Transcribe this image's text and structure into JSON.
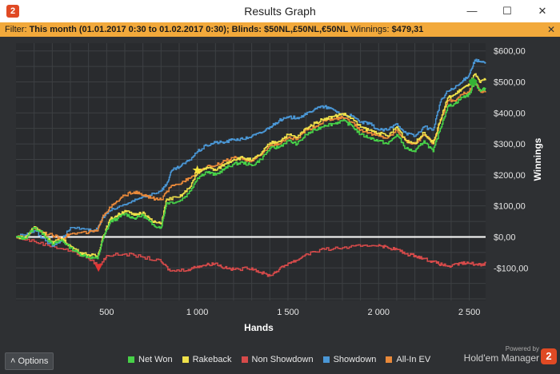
{
  "window": {
    "title": "Results Graph",
    "minimize_glyph": "—",
    "maximize_glyph": "☐",
    "close_glyph": "✕",
    "app_logo_text": "2"
  },
  "filter": {
    "label": "Filter:",
    "text": "This month (01.01.2017 0:30 to 01.02.2017 0:30); Blinds: $50NL,£50NL,€50NL",
    "winnings_label": "Winnings:",
    "winnings_value": "$479,31",
    "close_glyph": "✕"
  },
  "options": {
    "label": "Options",
    "icon": "chevron-up-icon",
    "glyph": "˄"
  },
  "brand": {
    "powered_by": "Powered by",
    "name": "Hold'em Manager",
    "logo_text": "2"
  },
  "colors": {
    "background": "#2e3033",
    "plot_bg": "#292b2e",
    "grid": "#3d4043",
    "zero_line": "#ffffff",
    "net_won": "#47d148",
    "rakeback": "#efe14a",
    "non_showdown": "#d64a4a",
    "showdown": "#4a97d6",
    "allin_ev": "#e9893a",
    "filter_bar": "#f2a93b"
  },
  "chart_data": {
    "type": "line",
    "xlabel": "Hands",
    "ylabel": "Winnings",
    "xlim": [
      0,
      2590
    ],
    "ylim": [
      -205,
      625
    ],
    "x_ticks": [
      {
        "value": 500,
        "label": "500"
      },
      {
        "value": 1000,
        "label": "1 000"
      },
      {
        "value": 1500,
        "label": "1 500"
      },
      {
        "value": 2000,
        "label": "2 000"
      },
      {
        "value": 2500,
        "label": "2 500"
      }
    ],
    "y_ticks": [
      {
        "value": 600,
        "label": "$600,00"
      },
      {
        "value": 500,
        "label": "$500,00"
      },
      {
        "value": 400,
        "label": "$400,00"
      },
      {
        "value": 300,
        "label": "$300,00"
      },
      {
        "value": 200,
        "label": "$200,00"
      },
      {
        "value": 100,
        "label": "$100,00"
      },
      {
        "value": 0,
        "label": "$0,00"
      },
      {
        "value": -100,
        "label": "-$100,00"
      }
    ],
    "grid": true,
    "legend_position": "bottom",
    "series": [
      {
        "name": "Net Won",
        "color": "#47d148",
        "points": [
          [
            0,
            0
          ],
          [
            50,
            -5
          ],
          [
            100,
            30
          ],
          [
            150,
            10
          ],
          [
            200,
            -25
          ],
          [
            250,
            -10
          ],
          [
            300,
            -35
          ],
          [
            350,
            -55
          ],
          [
            400,
            -65
          ],
          [
            450,
            -70
          ],
          [
            480,
            -5
          ],
          [
            520,
            50
          ],
          [
            560,
            60
          ],
          [
            600,
            75
          ],
          [
            650,
            60
          ],
          [
            700,
            70
          ],
          [
            750,
            40
          ],
          [
            800,
            30
          ],
          [
            830,
            110
          ],
          [
            900,
            115
          ],
          [
            950,
            140
          ],
          [
            1000,
            190
          ],
          [
            1050,
            210
          ],
          [
            1100,
            200
          ],
          [
            1150,
            220
          ],
          [
            1200,
            235
          ],
          [
            1250,
            240
          ],
          [
            1300,
            230
          ],
          [
            1350,
            250
          ],
          [
            1400,
            285
          ],
          [
            1450,
            290
          ],
          [
            1500,
            310
          ],
          [
            1550,
            300
          ],
          [
            1600,
            330
          ],
          [
            1650,
            345
          ],
          [
            1700,
            360
          ],
          [
            1750,
            365
          ],
          [
            1800,
            375
          ],
          [
            1850,
            360
          ],
          [
            1900,
            330
          ],
          [
            1950,
            320
          ],
          [
            2000,
            310
          ],
          [
            2050,
            300
          ],
          [
            2100,
            330
          ],
          [
            2150,
            285
          ],
          [
            2200,
            275
          ],
          [
            2250,
            310
          ],
          [
            2300,
            275
          ],
          [
            2340,
            350
          ],
          [
            2380,
            420
          ],
          [
            2420,
            430
          ],
          [
            2460,
            450
          ],
          [
            2500,
            460
          ],
          [
            2530,
            500
          ],
          [
            2560,
            470
          ],
          [
            2590,
            480
          ]
        ]
      },
      {
        "name": "Rakeback",
        "color": "#efe14a",
        "points": [
          [
            0,
            0
          ],
          [
            50,
            -3
          ],
          [
            100,
            33
          ],
          [
            150,
            13
          ],
          [
            200,
            -20
          ],
          [
            250,
            -5
          ],
          [
            300,
            -30
          ],
          [
            350,
            -50
          ],
          [
            400,
            -58
          ],
          [
            450,
            -62
          ],
          [
            480,
            3
          ],
          [
            520,
            58
          ],
          [
            560,
            70
          ],
          [
            600,
            85
          ],
          [
            650,
            70
          ],
          [
            700,
            80
          ],
          [
            750,
            50
          ],
          [
            800,
            42
          ],
          [
            830,
            122
          ],
          [
            900,
            128
          ],
          [
            950,
            155
          ],
          [
            1000,
            205
          ],
          [
            1050,
            225
          ],
          [
            1100,
            215
          ],
          [
            1150,
            235
          ],
          [
            1200,
            250
          ],
          [
            1250,
            256
          ],
          [
            1300,
            247
          ],
          [
            1350,
            268
          ],
          [
            1400,
            303
          ],
          [
            1450,
            309
          ],
          [
            1500,
            330
          ],
          [
            1550,
            321
          ],
          [
            1600,
            351
          ],
          [
            1650,
            367
          ],
          [
            1700,
            382
          ],
          [
            1750,
            388
          ],
          [
            1800,
            398
          ],
          [
            1850,
            383
          ],
          [
            1900,
            354
          ],
          [
            1950,
            344
          ],
          [
            2000,
            335
          ],
          [
            2050,
            325
          ],
          [
            2100,
            355
          ],
          [
            2150,
            311
          ],
          [
            2200,
            302
          ],
          [
            2250,
            337
          ],
          [
            2300,
            302
          ],
          [
            2340,
            378
          ],
          [
            2380,
            448
          ],
          [
            2420,
            459
          ],
          [
            2460,
            479
          ],
          [
            2500,
            490
          ],
          [
            2530,
            525
          ],
          [
            2560,
            498
          ],
          [
            2590,
            510
          ]
        ]
      },
      {
        "name": "Non Showdown",
        "color": "#d64a4a",
        "points": [
          [
            0,
            0
          ],
          [
            100,
            -15
          ],
          [
            200,
            -30
          ],
          [
            300,
            -45
          ],
          [
            400,
            -70
          ],
          [
            460,
            -95
          ],
          [
            500,
            -60
          ],
          [
            600,
            -55
          ],
          [
            700,
            -65
          ],
          [
            800,
            -80
          ],
          [
            850,
            -110
          ],
          [
            950,
            -105
          ],
          [
            1000,
            -95
          ],
          [
            1050,
            -90
          ],
          [
            1100,
            -85
          ],
          [
            1150,
            -100
          ],
          [
            1200,
            -105
          ],
          [
            1300,
            -100
          ],
          [
            1350,
            -115
          ],
          [
            1400,
            -125
          ],
          [
            1450,
            -105
          ],
          [
            1500,
            -85
          ],
          [
            1550,
            -75
          ],
          [
            1600,
            -55
          ],
          [
            1700,
            -40
          ],
          [
            1800,
            -35
          ],
          [
            1900,
            -30
          ],
          [
            2000,
            -25
          ],
          [
            2050,
            -35
          ],
          [
            2100,
            -40
          ],
          [
            2150,
            -55
          ],
          [
            2200,
            -60
          ],
          [
            2250,
            -70
          ],
          [
            2300,
            -80
          ],
          [
            2350,
            -90
          ],
          [
            2400,
            -95
          ],
          [
            2450,
            -85
          ],
          [
            2500,
            -85
          ],
          [
            2560,
            -90
          ],
          [
            2590,
            -85
          ]
        ]
      },
      {
        "name": "Showdown",
        "color": "#4a97d6",
        "points": [
          [
            0,
            0
          ],
          [
            100,
            20
          ],
          [
            200,
            -30
          ],
          [
            250,
            -10
          ],
          [
            300,
            30
          ],
          [
            400,
            20
          ],
          [
            450,
            25
          ],
          [
            480,
            65
          ],
          [
            520,
            85
          ],
          [
            600,
            105
          ],
          [
            650,
            115
          ],
          [
            700,
            130
          ],
          [
            800,
            150
          ],
          [
            830,
            170
          ],
          [
            860,
            215
          ],
          [
            900,
            225
          ],
          [
            950,
            245
          ],
          [
            1000,
            275
          ],
          [
            1050,
            295
          ],
          [
            1100,
            305
          ],
          [
            1150,
            305
          ],
          [
            1200,
            315
          ],
          [
            1250,
            315
          ],
          [
            1300,
            325
          ],
          [
            1350,
            335
          ],
          [
            1400,
            355
          ],
          [
            1450,
            375
          ],
          [
            1500,
            385
          ],
          [
            1550,
            385
          ],
          [
            1600,
            395
          ],
          [
            1650,
            415
          ],
          [
            1700,
            420
          ],
          [
            1750,
            410
          ],
          [
            1800,
            395
          ],
          [
            1850,
            390
          ],
          [
            1900,
            370
          ],
          [
            1950,
            365
          ],
          [
            2000,
            345
          ],
          [
            2050,
            345
          ],
          [
            2100,
            365
          ],
          [
            2150,
            335
          ],
          [
            2200,
            325
          ],
          [
            2250,
            355
          ],
          [
            2300,
            345
          ],
          [
            2340,
            435
          ],
          [
            2380,
            470
          ],
          [
            2420,
            480
          ],
          [
            2460,
            500
          ],
          [
            2500,
            525
          ],
          [
            2530,
            570
          ],
          [
            2560,
            565
          ],
          [
            2590,
            560
          ]
        ]
      },
      {
        "name": "All-In EV",
        "color": "#e9893a",
        "points": [
          [
            0,
            0
          ],
          [
            50,
            -2
          ],
          [
            100,
            30
          ],
          [
            150,
            15
          ],
          [
            200,
            5
          ],
          [
            250,
            -5
          ],
          [
            300,
            10
          ],
          [
            400,
            15
          ],
          [
            450,
            20
          ],
          [
            480,
            70
          ],
          [
            520,
            95
          ],
          [
            560,
            115
          ],
          [
            600,
            135
          ],
          [
            650,
            145
          ],
          [
            700,
            135
          ],
          [
            750,
            125
          ],
          [
            800,
            120
          ],
          [
            850,
            160
          ],
          [
            900,
            170
          ],
          [
            950,
            190
          ],
          [
            1000,
            210
          ],
          [
            1050,
            225
          ],
          [
            1100,
            230
          ],
          [
            1150,
            245
          ],
          [
            1200,
            255
          ],
          [
            1250,
            250
          ],
          [
            1300,
            245
          ],
          [
            1350,
            265
          ],
          [
            1400,
            295
          ],
          [
            1450,
            300
          ],
          [
            1500,
            320
          ],
          [
            1550,
            315
          ],
          [
            1600,
            345
          ],
          [
            1650,
            355
          ],
          [
            1700,
            375
          ],
          [
            1750,
            380
          ],
          [
            1800,
            385
          ],
          [
            1850,
            370
          ],
          [
            1900,
            345
          ],
          [
            1950,
            335
          ],
          [
            2000,
            325
          ],
          [
            2050,
            320
          ],
          [
            2100,
            345
          ],
          [
            2150,
            310
          ],
          [
            2200,
            300
          ],
          [
            2250,
            330
          ],
          [
            2300,
            300
          ],
          [
            2340,
            375
          ],
          [
            2380,
            440
          ],
          [
            2420,
            440
          ],
          [
            2460,
            460
          ],
          [
            2500,
            470
          ],
          [
            2530,
            500
          ],
          [
            2560,
            470
          ],
          [
            2590,
            470
          ]
        ]
      }
    ],
    "markers": [
      {
        "name": "low-marker",
        "shape": "triangle-down",
        "color": "#e23434",
        "x": 455,
        "y": -100
      },
      {
        "name": "star-marker",
        "shape": "star",
        "color": "#f5e63c",
        "x": 1000,
        "y": 215
      },
      {
        "name": "high-marker",
        "shape": "pentagon",
        "color": "#35b335",
        "x": 2520,
        "y": 500
      }
    ]
  }
}
